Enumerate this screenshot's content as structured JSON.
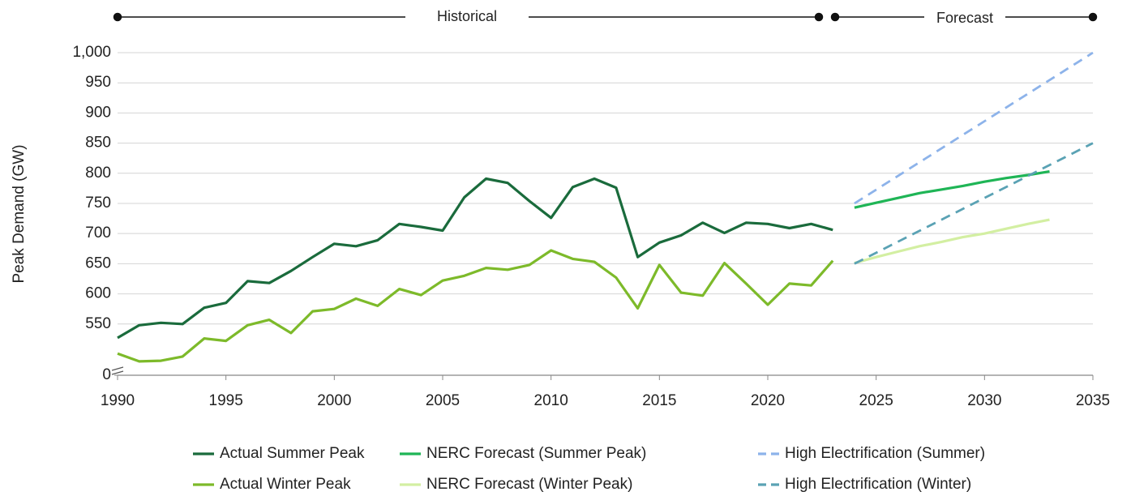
{
  "chart_data": {
    "type": "line",
    "annotations": {
      "historical": "Historical",
      "forecast": "Forecast"
    },
    "y_label": "Peak Demand (GW)",
    "xlim": [
      1990,
      2035
    ],
    "xticks": [
      1990,
      1995,
      2000,
      2005,
      2010,
      2015,
      2020,
      2025,
      2030,
      2035
    ],
    "ylim": [
      465,
      1000
    ],
    "axis_break": true,
    "yticks": [
      0,
      550,
      600,
      650,
      700,
      750,
      800,
      850,
      900,
      950,
      {
        "value": 1000,
        "label": "1,000"
      }
    ],
    "grid": true,
    "series": [
      {
        "name": "Actual Summer Peak",
        "color": "#1a6b3c",
        "dash": false,
        "x": [
          1990,
          1991,
          1992,
          1993,
          1994,
          1995,
          1996,
          1997,
          1998,
          1999,
          2000,
          2001,
          2002,
          2003,
          2004,
          2005,
          2006,
          2007,
          2008,
          2009,
          2010,
          2011,
          2012,
          2013,
          2014,
          2015,
          2016,
          2017,
          2018,
          2019,
          2020,
          2021,
          2022,
          2023
        ],
        "values": [
          527,
          548,
          552,
          550,
          577,
          585,
          621,
          618,
          638,
          661,
          683,
          679,
          689,
          716,
          711,
          705,
          760,
          791,
          784,
          754,
          726,
          777,
          791,
          776,
          661,
          685,
          697,
          718,
          701,
          718,
          716,
          709,
          716,
          706
        ]
      },
      {
        "name": "NERC Forecast (Summer Peak)",
        "color": "#1fb556",
        "dash": false,
        "x": [
          2024,
          2025,
          2026,
          2027,
          2028,
          2029,
          2030,
          2031,
          2032,
          2033
        ],
        "values": [
          743,
          751,
          759,
          767,
          773,
          779,
          786,
          792,
          797,
          803
        ]
      },
      {
        "name": "High Electrification (Summer)",
        "color": "#8db3ea",
        "dash": true,
        "x": [
          2024,
          2035
        ],
        "values": [
          750,
          1000
        ]
      },
      {
        "name": "Actual Winter Peak",
        "color": "#7dba2a",
        "dash": false,
        "x": [
          1990,
          1991,
          1992,
          1993,
          1994,
          1995,
          1996,
          1997,
          1998,
          1999,
          2000,
          2001,
          2002,
          2003,
          2004,
          2005,
          2006,
          2007,
          2008,
          2009,
          2010,
          2011,
          2012,
          2013,
          2014,
          2015,
          2016,
          2017,
          2018,
          2019,
          2020,
          2021,
          2022,
          2023
        ],
        "values": [
          501,
          488,
          489,
          496,
          526,
          522,
          548,
          557,
          535,
          571,
          575,
          592,
          580,
          608,
          598,
          622,
          630,
          643,
          640,
          648,
          672,
          658,
          653,
          627,
          576,
          648,
          602,
          597,
          651,
          617,
          582,
          617,
          614,
          655
        ]
      },
      {
        "name": "NERC Forecast (Winter Peak)",
        "color": "#d3efa2",
        "dash": false,
        "x": [
          2024,
          2025,
          2026,
          2027,
          2028,
          2029,
          2030,
          2031,
          2032,
          2033
        ],
        "values": [
          651,
          661,
          670,
          679,
          686,
          694,
          700,
          708,
          716,
          723
        ]
      },
      {
        "name": "High Electrification (Winter)",
        "color": "#5aa2b4",
        "dash": true,
        "x": [
          2024,
          2035
        ],
        "values": [
          650,
          850
        ]
      }
    ]
  }
}
